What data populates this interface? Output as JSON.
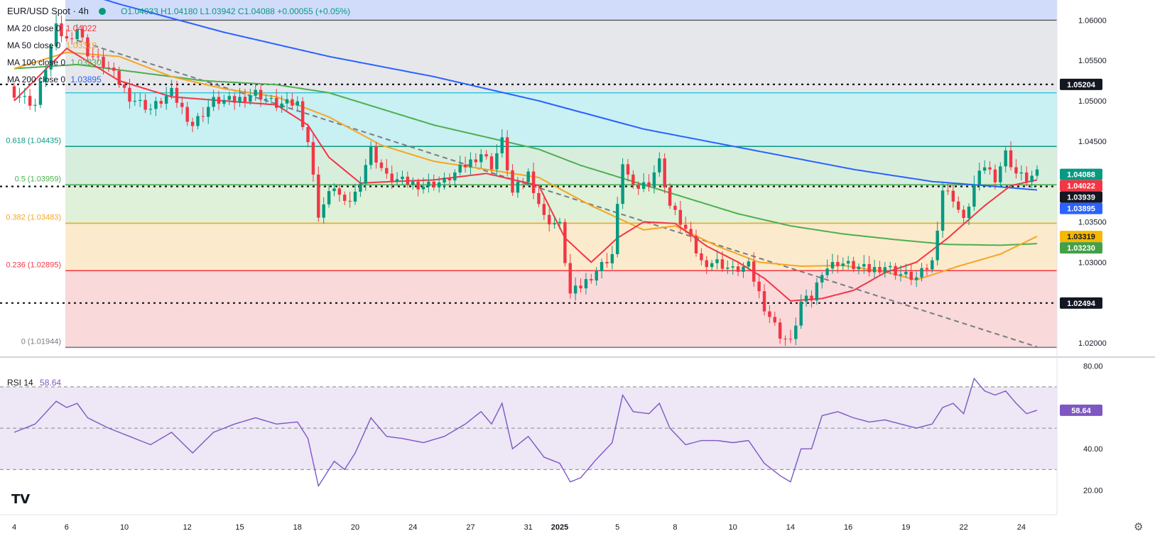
{
  "header": {
    "symbol": "EUR/USD Spot · 4h",
    "ohlc": "O1.04033  H1.04180  L1.03942  C1.04088  +0.00055 (+0.05%)"
  },
  "ma_legend": [
    {
      "label": "MA 20 close 0",
      "value": "1.04022",
      "color": "#f23645"
    },
    {
      "label": "MA 50 close 0",
      "value": "1.03319",
      "color": "#f5a623"
    },
    {
      "label": "MA 100 close 0",
      "value": "1.03230",
      "color": "#4caf50"
    },
    {
      "label": "MA 200 close 0",
      "value": "1.03895",
      "color": "#2962ff"
    }
  ],
  "rsi_legend": {
    "label": "RSI 14",
    "value": "58.64"
  },
  "icons": {
    "logo": "tradingview-logo-icon",
    "settings": "gear-icon",
    "live": "live-dot-icon"
  },
  "chart_data": {
    "type": "candlestick",
    "price_axis": {
      "ylim": [
        1.0185,
        1.0625
      ],
      "ticks": [
        "1.06000",
        "1.05500",
        "1.05000",
        "1.04500",
        "1.03500",
        "1.03000",
        "1.02000"
      ]
    },
    "rsi_axis": {
      "ylim": [
        15,
        83
      ],
      "ticks": [
        "80.00",
        "40.00",
        "20.00"
      ],
      "bands": [
        30,
        50,
        70
      ]
    },
    "x_ticks": [
      {
        "label": "4",
        "i": 0
      },
      {
        "label": "6",
        "i": 10
      },
      {
        "label": "10",
        "i": 21
      },
      {
        "label": "12",
        "i": 33
      },
      {
        "label": "15",
        "i": 43
      },
      {
        "label": "18",
        "i": 54
      },
      {
        "label": "20",
        "i": 65
      },
      {
        "label": "24",
        "i": 76
      },
      {
        "label": "27",
        "i": 87
      },
      {
        "label": "31",
        "i": 98
      },
      {
        "label": "2025",
        "i": 104
      },
      {
        "label": "5",
        "i": 115
      },
      {
        "label": "8",
        "i": 126
      },
      {
        "label": "10",
        "i": 137
      },
      {
        "label": "14",
        "i": 148
      },
      {
        "label": "16",
        "i": 159
      },
      {
        "label": "19",
        "i": 170
      },
      {
        "label": "22",
        "i": 181
      },
      {
        "label": "24",
        "i": 192
      }
    ],
    "fib_levels": [
      {
        "label": "0.618 (1.04435)",
        "value": 1.04435,
        "color": "#089981"
      },
      {
        "label": "0.5 (1.03959)",
        "value": 1.03959,
        "color": "#4caf50"
      },
      {
        "label": "0.382 (1.03483)",
        "value": 1.03483,
        "color": "#f5a623"
      },
      {
        "label": "0.236 (1.02895)",
        "value": 1.02895,
        "color": "#f23645"
      },
      {
        "label": "0 (1.01944)",
        "value": 1.01944,
        "color": "#787b86"
      }
    ],
    "fib_bands": [
      {
        "from": 1.06,
        "to": 1.0626,
        "color": "#d1dcfb"
      },
      {
        "from": 1.051,
        "to": 1.06,
        "color": "#e6e7ea"
      },
      {
        "from": 1.04435,
        "to": 1.051,
        "color": "#c9f0f3"
      },
      {
        "from": 1.03959,
        "to": 1.04435,
        "color": "#d8eedd"
      },
      {
        "from": 1.03483,
        "to": 1.03959,
        "color": "#dff1d8"
      },
      {
        "from": 1.02895,
        "to": 1.03483,
        "color": "#fbeacc"
      },
      {
        "from": 1.01944,
        "to": 1.02895,
        "color": "#f9d9da"
      }
    ],
    "horizontal_lines": [
      {
        "value": 1.06,
        "color": "#555555",
        "style": "solid"
      },
      {
        "value": 1.051,
        "color": "#26c6da",
        "style": "solid"
      },
      {
        "value": 1.05204,
        "color": "#131722",
        "style": "dotted"
      },
      {
        "value": 1.03939,
        "color": "#131722",
        "style": "dotted"
      },
      {
        "value": 1.02494,
        "color": "#131722",
        "style": "dotted"
      }
    ],
    "trendline": {
      "from": [
        12,
        1.0575
      ],
      "to": [
        195,
        1.0195
      ],
      "color": "#787b86"
    },
    "price_badges": [
      {
        "text": "1.05204",
        "value": 1.05204,
        "bg": "#131722",
        "fg": "#ffffff"
      },
      {
        "text": "1.04088",
        "value": 1.04088,
        "bg": "#089981",
        "fg": "#ffffff"
      },
      {
        "text": "1.04022",
        "value": 1.04022,
        "bg": "#f23645",
        "fg": "#ffffff"
      },
      {
        "text": "1.03939",
        "value": 1.03939,
        "bg": "#131722",
        "fg": "#ffffff"
      },
      {
        "text": "1.03895",
        "value": 1.03895,
        "bg": "#2962ff",
        "fg": "#ffffff"
      },
      {
        "text": "1.03319",
        "value": 1.03319,
        "bg": "#f5b700",
        "fg": "#131722"
      },
      {
        "text": "1.03230",
        "value": 1.0323,
        "bg": "#43a047",
        "fg": "#ffffff"
      },
      {
        "text": "1.02494",
        "value": 1.02494,
        "bg": "#131722",
        "fg": "#ffffff"
      }
    ],
    "rsi_badge": {
      "text": "58.64",
      "value": 58.64,
      "bg": "#7e57c2",
      "fg": "#ffffff"
    },
    "close_anchors": [
      [
        0,
        1.051
      ],
      [
        4,
        1.0495
      ],
      [
        8,
        1.059
      ],
      [
        10,
        1.0575
      ],
      [
        12,
        1.059
      ],
      [
        14,
        1.056
      ],
      [
        18,
        1.054
      ],
      [
        22,
        1.0505
      ],
      [
        26,
        1.049
      ],
      [
        30,
        1.051
      ],
      [
        34,
        1.047
      ],
      [
        38,
        1.05
      ],
      [
        42,
        1.05
      ],
      [
        46,
        1.051
      ],
      [
        50,
        1.0495
      ],
      [
        54,
        1.0497
      ],
      [
        56,
        1.045
      ],
      [
        58,
        1.036
      ],
      [
        61,
        1.0395
      ],
      [
        63,
        1.037
      ],
      [
        65,
        1.0385
      ],
      [
        68,
        1.044
      ],
      [
        71,
        1.0405
      ],
      [
        74,
        1.04
      ],
      [
        78,
        1.0395
      ],
      [
        82,
        1.04
      ],
      [
        86,
        1.042
      ],
      [
        89,
        1.0435
      ],
      [
        91,
        1.042
      ],
      [
        93,
        1.045
      ],
      [
        95,
        1.0385
      ],
      [
        98,
        1.041
      ],
      [
        101,
        1.0355
      ],
      [
        104,
        1.0345
      ],
      [
        106,
        1.026
      ],
      [
        108,
        1.027
      ],
      [
        111,
        1.029
      ],
      [
        114,
        1.031
      ],
      [
        116,
        1.0425
      ],
      [
        118,
        1.039
      ],
      [
        121,
        1.04
      ],
      [
        123,
        1.0425
      ],
      [
        125,
        1.037
      ],
      [
        128,
        1.034
      ],
      [
        131,
        1.03
      ],
      [
        134,
        1.03
      ],
      [
        137,
        1.029
      ],
      [
        140,
        1.0295
      ],
      [
        143,
        1.0245
      ],
      [
        146,
        1.021
      ],
      [
        148,
        1.02
      ],
      [
        150,
        1.025
      ],
      [
        152,
        1.0255
      ],
      [
        154,
        1.029
      ],
      [
        157,
        1.03
      ],
      [
        160,
        1.0295
      ],
      [
        163,
        1.029
      ],
      [
        166,
        1.0295
      ],
      [
        169,
        1.0285
      ],
      [
        172,
        1.028
      ],
      [
        175,
        1.03
      ],
      [
        177,
        1.039
      ],
      [
        179,
        1.038
      ],
      [
        181,
        1.035
      ],
      [
        183,
        1.0395
      ],
      [
        185,
        1.042
      ],
      [
        187,
        1.0405
      ],
      [
        189,
        1.0435
      ],
      [
        191,
        1.041
      ],
      [
        193,
        1.0403
      ],
      [
        195,
        1.0409
      ]
    ],
    "rsi_anchors": [
      [
        0,
        48
      ],
      [
        4,
        52
      ],
      [
        8,
        63
      ],
      [
        10,
        60
      ],
      [
        12,
        62
      ],
      [
        14,
        55
      ],
      [
        18,
        50
      ],
      [
        22,
        46
      ],
      [
        26,
        42
      ],
      [
        30,
        48
      ],
      [
        34,
        38
      ],
      [
        38,
        48
      ],
      [
        42,
        52
      ],
      [
        46,
        55
      ],
      [
        50,
        52
      ],
      [
        54,
        53
      ],
      [
        56,
        45
      ],
      [
        58,
        22
      ],
      [
        61,
        34
      ],
      [
        63,
        30
      ],
      [
        65,
        38
      ],
      [
        68,
        55
      ],
      [
        71,
        46
      ],
      [
        74,
        45
      ],
      [
        78,
        43
      ],
      [
        82,
        46
      ],
      [
        86,
        52
      ],
      [
        89,
        58
      ],
      [
        91,
        52
      ],
      [
        93,
        62
      ],
      [
        95,
        40
      ],
      [
        98,
        46
      ],
      [
        101,
        36
      ],
      [
        104,
        33
      ],
      [
        106,
        24
      ],
      [
        108,
        26
      ],
      [
        111,
        35
      ],
      [
        114,
        43
      ],
      [
        116,
        66
      ],
      [
        118,
        58
      ],
      [
        121,
        57
      ],
      [
        123,
        62
      ],
      [
        125,
        50
      ],
      [
        128,
        42
      ],
      [
        131,
        44
      ],
      [
        134,
        44
      ],
      [
        137,
        43
      ],
      [
        140,
        44
      ],
      [
        143,
        33
      ],
      [
        146,
        27
      ],
      [
        148,
        24
      ],
      [
        150,
        40
      ],
      [
        152,
        40
      ],
      [
        154,
        56
      ],
      [
        157,
        58
      ],
      [
        160,
        55
      ],
      [
        163,
        53
      ],
      [
        166,
        54
      ],
      [
        169,
        52
      ],
      [
        172,
        50
      ],
      [
        175,
        52
      ],
      [
        177,
        60
      ],
      [
        179,
        62
      ],
      [
        181,
        57
      ],
      [
        183,
        74
      ],
      [
        185,
        68
      ],
      [
        187,
        66
      ],
      [
        189,
        68
      ],
      [
        191,
        62
      ],
      [
        193,
        57
      ],
      [
        195,
        58.64
      ]
    ],
    "ma_anchors": {
      "ma20": [
        [
          0,
          1.05
        ],
        [
          10,
          1.0565
        ],
        [
          20,
          1.0525
        ],
        [
          30,
          1.0505
        ],
        [
          40,
          1.05
        ],
        [
          50,
          1.0495
        ],
        [
          56,
          1.047
        ],
        [
          60,
          1.043
        ],
        [
          66,
          1.0398
        ],
        [
          72,
          1.04
        ],
        [
          80,
          1.0402
        ],
        [
          90,
          1.041
        ],
        [
          100,
          1.0395
        ],
        [
          105,
          1.033
        ],
        [
          110,
          1.03
        ],
        [
          115,
          1.033
        ],
        [
          120,
          1.035
        ],
        [
          126,
          1.0348
        ],
        [
          132,
          1.032
        ],
        [
          138,
          1.03
        ],
        [
          143,
          1.028
        ],
        [
          148,
          1.0252
        ],
        [
          154,
          1.0255
        ],
        [
          160,
          1.0265
        ],
        [
          166,
          1.0287
        ],
        [
          172,
          1.03
        ],
        [
          178,
          1.033
        ],
        [
          185,
          1.037
        ],
        [
          190,
          1.0395
        ],
        [
          195,
          1.0402
        ]
      ],
      "ma50": [
        [
          0,
          1.054
        ],
        [
          10,
          1.056
        ],
        [
          20,
          1.0555
        ],
        [
          30,
          1.053
        ],
        [
          40,
          1.0515
        ],
        [
          50,
          1.0505
        ],
        [
          60,
          1.048
        ],
        [
          70,
          1.0445
        ],
        [
          80,
          1.0425
        ],
        [
          90,
          1.0415
        ],
        [
          100,
          1.0405
        ],
        [
          110,
          1.037
        ],
        [
          120,
          1.034
        ],
        [
          126,
          1.0345
        ],
        [
          134,
          1.032
        ],
        [
          142,
          1.03
        ],
        [
          150,
          1.0295
        ],
        [
          158,
          1.0296
        ],
        [
          166,
          1.0288
        ],
        [
          172,
          1.0278
        ],
        [
          180,
          1.0295
        ],
        [
          188,
          1.031
        ],
        [
          195,
          1.0332
        ]
      ],
      "ma100": [
        [
          0,
          1.054
        ],
        [
          12,
          1.0545
        ],
        [
          24,
          1.0535
        ],
        [
          36,
          1.0525
        ],
        [
          50,
          1.052
        ],
        [
          60,
          1.051
        ],
        [
          70,
          1.049
        ],
        [
          80,
          1.047
        ],
        [
          90,
          1.0455
        ],
        [
          100,
          1.044
        ],
        [
          108,
          1.042
        ],
        [
          118,
          1.04
        ],
        [
          128,
          1.038
        ],
        [
          138,
          1.036
        ],
        [
          148,
          1.0345
        ],
        [
          158,
          1.0335
        ],
        [
          168,
          1.0328
        ],
        [
          178,
          1.0322
        ],
        [
          188,
          1.0321
        ],
        [
          195,
          1.0323
        ]
      ],
      "ma200": [
        [
          0,
          1.066
        ],
        [
          20,
          1.062
        ],
        [
          40,
          1.0585
        ],
        [
          60,
          1.0555
        ],
        [
          80,
          1.053
        ],
        [
          100,
          1.05
        ],
        [
          120,
          1.0465
        ],
        [
          140,
          1.044
        ],
        [
          160,
          1.0415
        ],
        [
          175,
          1.04
        ],
        [
          185,
          1.0395
        ],
        [
          195,
          1.03895
        ]
      ]
    }
  }
}
